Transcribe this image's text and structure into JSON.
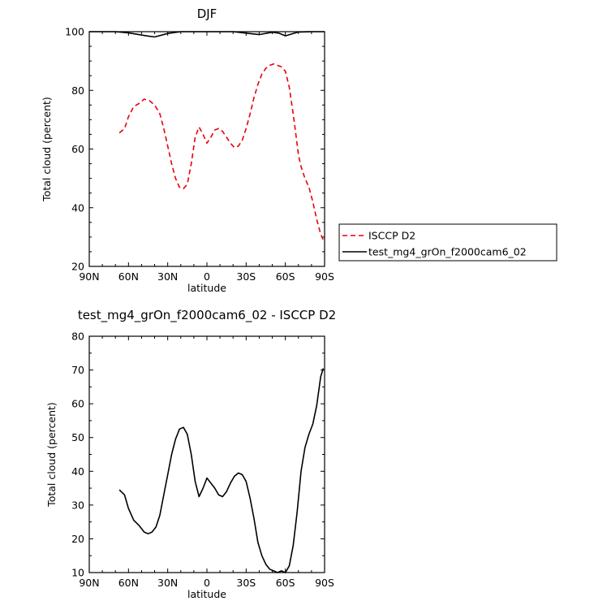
{
  "chart_data": [
    {
      "type": "line",
      "title": "DJF",
      "xlabel": "latitude",
      "ylabel": "Total cloud (percent)",
      "xlim": [
        90,
        -90
      ],
      "ylim": [
        20,
        100
      ],
      "xticks": [
        90,
        60,
        30,
        0,
        -30,
        -60,
        -90
      ],
      "xtick_labels": [
        "90N",
        "60N",
        "30N",
        "0",
        "30S",
        "60S",
        "90S"
      ],
      "yticks": [
        20,
        40,
        60,
        80,
        100
      ],
      "ytick_labels": [
        "20",
        "40",
        "60",
        "80",
        "100"
      ],
      "grid": false,
      "legend_position": "right",
      "series": [
        {
          "name": "ISCCP D2",
          "color": "#e8000b",
          "dash": "dashed",
          "x": [
            67,
            63,
            60,
            56,
            52,
            48,
            44,
            40,
            36,
            33,
            30,
            27,
            24,
            21,
            18,
            15,
            12,
            9,
            6,
            3,
            0,
            -3,
            -6,
            -9,
            -12,
            -15,
            -18,
            -21,
            -24,
            -27,
            -30,
            -33,
            -36,
            -39,
            -42,
            -45,
            -48,
            -51,
            -54,
            -57,
            -60,
            -63,
            -66,
            -68,
            -70,
            -72,
            -75,
            -78,
            -81,
            -84,
            -87,
            -89
          ],
          "y": [
            65.5,
            67,
            71,
            74.5,
            75.5,
            77,
            76.5,
            75,
            72,
            67,
            61,
            55,
            50,
            47,
            46.5,
            48,
            55,
            64,
            67.5,
            65,
            62,
            64,
            66.5,
            67,
            66,
            64,
            62,
            60.5,
            61,
            63,
            67,
            72,
            77.5,
            82,
            85.5,
            87.5,
            88.5,
            89,
            88.5,
            88,
            86.5,
            81,
            72,
            65,
            58,
            54,
            50,
            47,
            42,
            36,
            31,
            29
          ]
        },
        {
          "name": "test_mg4_grOn_f2000cam6_02",
          "color": "#000000",
          "dash": "solid",
          "x": [
            90,
            70,
            60,
            45,
            40,
            30,
            20,
            0,
            -20,
            -30,
            -40,
            -50,
            -55,
            -60,
            -70,
            -80,
            -90
          ],
          "y": [
            100,
            100,
            99.6,
            98.5,
            98.2,
            99.4,
            100,
            100,
            100,
            99.5,
            99.0,
            99.8,
            99.5,
            98.6,
            99.9,
            100,
            100
          ]
        }
      ]
    },
    {
      "type": "line",
      "title": "test_mg4_grOn_f2000cam6_02 - ISCCP D2",
      "xlabel": "latitude",
      "ylabel": "Total cloud (percent)",
      "xlim": [
        90,
        -90
      ],
      "ylim": [
        10,
        80
      ],
      "xticks": [
        90,
        60,
        30,
        0,
        -30,
        -60,
        -90
      ],
      "xtick_labels": [
        "90N",
        "60N",
        "30N",
        "0",
        "30S",
        "60S",
        "90S"
      ],
      "yticks": [
        10,
        20,
        30,
        40,
        50,
        60,
        70,
        80
      ],
      "ytick_labels": [
        "10",
        "20",
        "30",
        "40",
        "50",
        "60",
        "70",
        "80"
      ],
      "grid": false,
      "series": [
        {
          "color": "#000000",
          "dash": "solid",
          "x": [
            67,
            63,
            60,
            56,
            52,
            48,
            45,
            42,
            39,
            36,
            33,
            30,
            27,
            24,
            21,
            18,
            15,
            12,
            9,
            6,
            3,
            0,
            -3,
            -6,
            -9,
            -12,
            -15,
            -18,
            -21,
            -24,
            -27,
            -30,
            -33,
            -36,
            -39,
            -42,
            -45,
            -48,
            -51,
            -54,
            -57,
            -60,
            -63,
            -66,
            -69,
            -72,
            -75,
            -78,
            -81,
            -84,
            -87,
            -89
          ],
          "y": [
            34.5,
            33,
            29,
            25.5,
            24,
            22,
            21.5,
            22,
            23.5,
            27,
            33,
            39,
            45,
            49.5,
            52.5,
            53,
            51,
            45,
            37,
            32.5,
            35,
            38,
            36.5,
            35,
            33,
            32.5,
            34,
            36.5,
            38.5,
            39.5,
            39,
            37,
            32,
            26,
            19,
            15,
            12.5,
            11,
            10.5,
            10,
            10.5,
            10,
            12,
            18,
            28,
            40,
            47,
            51,
            54,
            59.5,
            68,
            70.5
          ]
        }
      ]
    }
  ]
}
